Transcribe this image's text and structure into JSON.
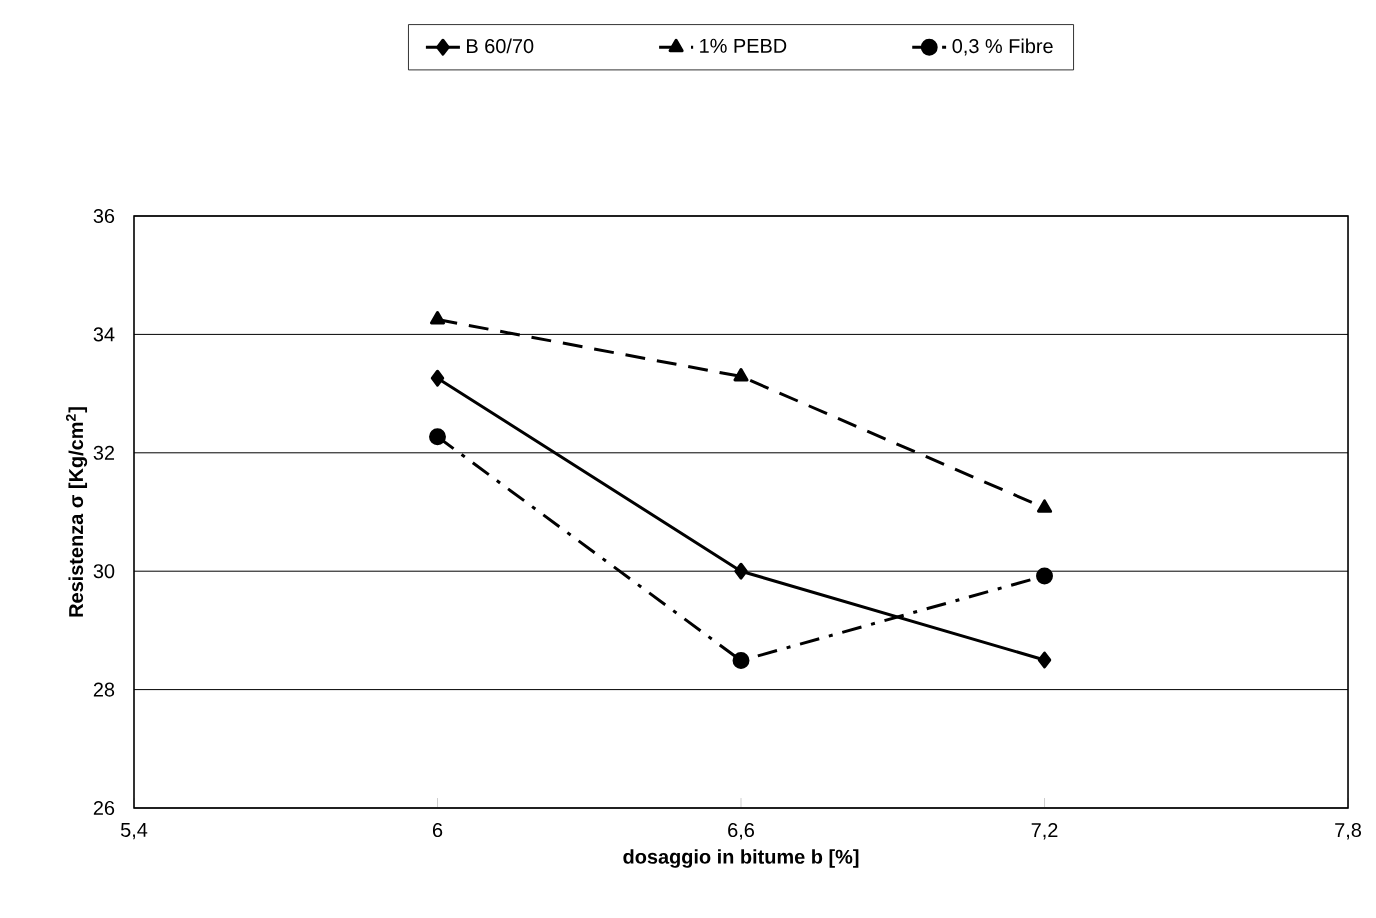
{
  "chart_data": {
    "type": "line",
    "xlabel": "dosaggio in bitume  b [%]",
    "ylabel": "Resistenza σ [Kg/cm$^{2}$]",
    "x": [
      6,
      6.6,
      7.2
    ],
    "series": [
      {
        "name": "B 60/70",
        "color": "#000000",
        "values": [
          33.26,
          30.0,
          28.5
        ],
        "marker": "diamond",
        "line_style": "solid"
      },
      {
        "name": "1% PEBD",
        "color": "#000000",
        "values": [
          34.25,
          33.29,
          31.07
        ],
        "marker": "triangle",
        "line_style": "dashed"
      },
      {
        "name": "0,3 % Fibre",
        "color": "#000000",
        "values": [
          32.27,
          28.49,
          29.92
        ],
        "marker": "circle",
        "line_style": "dashdot"
      }
    ],
    "xlim": [
      5.4,
      7.8
    ],
    "xticks": [
      {
        "value": 5.4,
        "label": "5,4"
      },
      6,
      {
        "value": 6.6,
        "label": "6,6"
      },
      {
        "value": 7.2,
        "label": "7,2"
      },
      {
        "value": 7.8,
        "label": "7,8"
      }
    ],
    "ylim": [
      26,
      36
    ],
    "yticks": [
      26,
      28,
      30,
      32,
      34,
      36
    ],
    "grid": "y",
    "legend": "top"
  }
}
